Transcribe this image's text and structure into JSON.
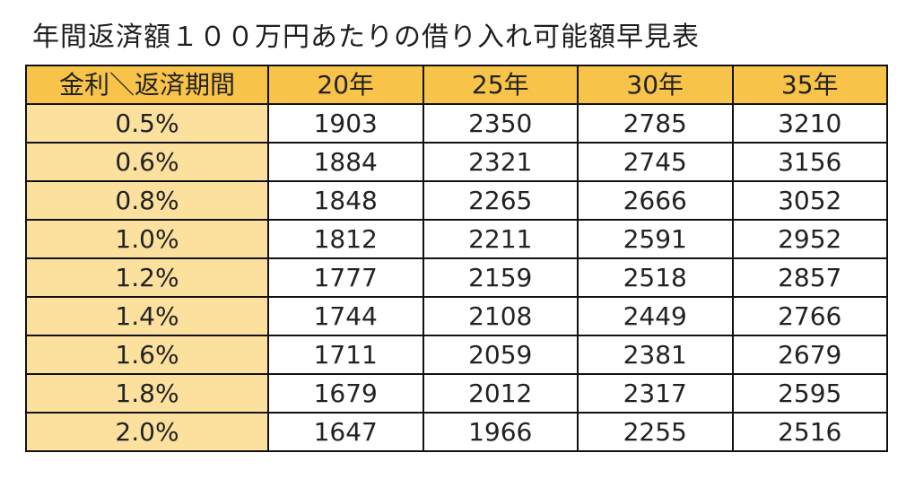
{
  "title": "年間返済額１００万円あたりの借り入れ可能額早見表",
  "table": {
    "corner_header": "金利＼返済期間",
    "columns": [
      "20年",
      "25年",
      "30年",
      "35年"
    ],
    "rows": [
      {
        "rate": "0.5%",
        "values": [
          "1903",
          "2350",
          "2785",
          "3210"
        ]
      },
      {
        "rate": "0.6%",
        "values": [
          "1884",
          "2321",
          "2745",
          "3156"
        ]
      },
      {
        "rate": "0.8%",
        "values": [
          "1848",
          "2265",
          "2666",
          "3052"
        ]
      },
      {
        "rate": "1.0%",
        "values": [
          "1812",
          "2211",
          "2591",
          "2952"
        ]
      },
      {
        "rate": "1.2%",
        "values": [
          "1777",
          "2159",
          "2518",
          "2857"
        ]
      },
      {
        "rate": "1.4%",
        "values": [
          "1744",
          "2108",
          "2449",
          "2766"
        ]
      },
      {
        "rate": "1.6%",
        "values": [
          "1711",
          "2059",
          "2381",
          "2679"
        ]
      },
      {
        "rate": "1.8%",
        "values": [
          "1679",
          "2012",
          "2317",
          "2595"
        ]
      },
      {
        "rate": "2.0%",
        "values": [
          "1647",
          "1966",
          "2255",
          "2516"
        ]
      }
    ]
  },
  "colors": {
    "header_bg": "#f7c348",
    "rate_bg": "#fbe09e",
    "border": "#111111"
  }
}
